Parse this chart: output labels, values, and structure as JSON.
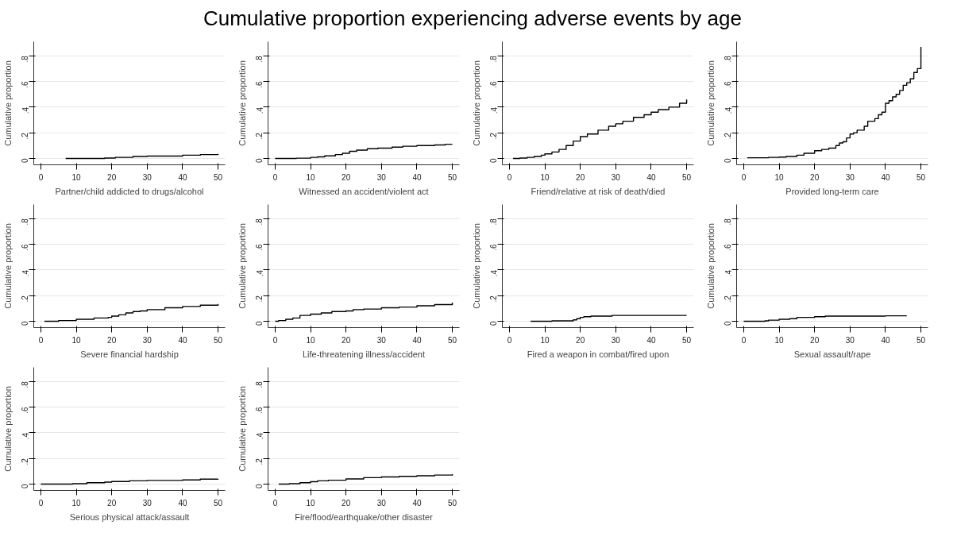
{
  "chart_data": [
    {
      "type": "step",
      "title": "Cumulative proportion experiencing adverse events by age",
      "xlabel": "Partner/child addicted to drugs/alcohol",
      "ylabel": "Cumulative proportion",
      "x": [
        7,
        18,
        21,
        26,
        30,
        40,
        45,
        50
      ],
      "values": [
        0,
        0.003,
        0.008,
        0.015,
        0.018,
        0.025,
        0.03,
        0.035
      ],
      "color": "#000000",
      "xlim": [
        -2,
        52
      ],
      "ylim": [
        -0.05,
        0.91
      ],
      "xticks": [
        0,
        10,
        20,
        30,
        40,
        50
      ],
      "yticks": [
        0,
        {
          "value": 0.2,
          "label": ".2"
        },
        {
          "value": 0.4,
          "label": ".4"
        },
        {
          "value": 0.6,
          "label": ".6"
        },
        {
          "value": 0.8,
          "label": ".8"
        }
      ],
      "grid": "y"
    },
    {
      "type": "step",
      "xlabel": "Witnessed an accident/violent act",
      "ylabel": "Cumulative proportion",
      "x": [
        0,
        6,
        10,
        12,
        14,
        17,
        19,
        21,
        23,
        26,
        29,
        33,
        36,
        40,
        45,
        48,
        50
      ],
      "values": [
        0,
        0.002,
        0.008,
        0.012,
        0.02,
        0.03,
        0.04,
        0.055,
        0.065,
        0.075,
        0.08,
        0.088,
        0.095,
        0.1,
        0.105,
        0.11,
        0.11
      ],
      "color": "#000000",
      "xlim": [
        -2,
        52
      ],
      "ylim": [
        -0.05,
        0.91
      ],
      "xticks": [
        0,
        10,
        20,
        30,
        40,
        50
      ],
      "yticks": [
        0,
        {
          "value": 0.2,
          "label": ".2"
        },
        {
          "value": 0.4,
          "label": ".4"
        },
        {
          "value": 0.6,
          "label": ".6"
        },
        {
          "value": 0.8,
          "label": ".8"
        }
      ],
      "grid": "y"
    },
    {
      "type": "step",
      "xlabel": "Friend/relative at risk of death/died",
      "ylabel": "Cumulative proportion",
      "x": [
        1,
        3,
        5,
        7,
        9,
        10,
        12,
        14,
        16,
        18,
        20,
        22,
        25,
        28,
        30,
        32,
        35,
        38,
        40,
        42,
        45,
        48,
        50
      ],
      "values": [
        0,
        0.003,
        0.008,
        0.015,
        0.025,
        0.035,
        0.05,
        0.07,
        0.1,
        0.135,
        0.17,
        0.19,
        0.22,
        0.25,
        0.27,
        0.29,
        0.32,
        0.34,
        0.36,
        0.38,
        0.4,
        0.43,
        0.46
      ],
      "color": "#000000",
      "xlim": [
        -2,
        52
      ],
      "ylim": [
        -0.05,
        0.91
      ],
      "xticks": [
        0,
        10,
        20,
        30,
        40,
        50
      ],
      "yticks": [
        0,
        {
          "value": 0.2,
          "label": ".2"
        },
        {
          "value": 0.4,
          "label": ".4"
        },
        {
          "value": 0.6,
          "label": ".6"
        },
        {
          "value": 0.8,
          "label": ".8"
        }
      ],
      "grid": "y"
    },
    {
      "type": "step",
      "xlabel": "Provided long-term care",
      "ylabel": "Cumulative proportion",
      "x": [
        1,
        7,
        10,
        12,
        15,
        17,
        20,
        22,
        24,
        26,
        27,
        28,
        29,
        30,
        31,
        32,
        34,
        35,
        37,
        38,
        39,
        40,
        41,
        42,
        43,
        44,
        45,
        46,
        47,
        48,
        49,
        50
      ],
      "values": [
        0.005,
        0.008,
        0.01,
        0.015,
        0.025,
        0.04,
        0.06,
        0.07,
        0.08,
        0.1,
        0.12,
        0.13,
        0.16,
        0.19,
        0.2,
        0.22,
        0.25,
        0.29,
        0.31,
        0.34,
        0.36,
        0.43,
        0.45,
        0.48,
        0.5,
        0.53,
        0.57,
        0.59,
        0.62,
        0.67,
        0.7,
        0.87
      ],
      "color": "#000000",
      "xlim": [
        -2,
        52
      ],
      "ylim": [
        -0.05,
        0.91
      ],
      "xticks": [
        0,
        10,
        20,
        30,
        40,
        50
      ],
      "yticks": [
        0,
        {
          "value": 0.2,
          "label": ".2"
        },
        {
          "value": 0.4,
          "label": ".4"
        },
        {
          "value": 0.6,
          "label": ".6"
        },
        {
          "value": 0.8,
          "label": ".8"
        }
      ],
      "grid": "y"
    },
    {
      "type": "step",
      "xlabel": "Severe financial hardship",
      "ylabel": "Cumulative proportion",
      "x": [
        1,
        5,
        10,
        15,
        19,
        20,
        22,
        24,
        26,
        28,
        30,
        35,
        40,
        45,
        50
      ],
      "values": [
        0,
        0.005,
        0.015,
        0.025,
        0.03,
        0.04,
        0.05,
        0.065,
        0.075,
        0.08,
        0.09,
        0.105,
        0.115,
        0.125,
        0.135
      ],
      "color": "#000000",
      "xlim": [
        -2,
        52
      ],
      "ylim": [
        -0.05,
        0.91
      ],
      "xticks": [
        0,
        10,
        20,
        30,
        40,
        50
      ],
      "yticks": [
        0,
        {
          "value": 0.2,
          "label": ".2"
        },
        {
          "value": 0.4,
          "label": ".4"
        },
        {
          "value": 0.6,
          "label": ".6"
        },
        {
          "value": 0.8,
          "label": ".8"
        }
      ],
      "grid": "y"
    },
    {
      "type": "step",
      "xlabel": "Life-threatening illness/accident",
      "ylabel": "Cumulative proportion",
      "x": [
        0,
        1,
        3,
        5,
        7,
        10,
        13,
        16,
        20,
        22,
        25,
        30,
        35,
        40,
        45,
        50
      ],
      "values": [
        0,
        0.005,
        0.015,
        0.025,
        0.045,
        0.055,
        0.065,
        0.075,
        0.08,
        0.09,
        0.095,
        0.105,
        0.11,
        0.12,
        0.13,
        0.145
      ],
      "color": "#000000",
      "xlim": [
        -2,
        52
      ],
      "ylim": [
        -0.05,
        0.91
      ],
      "xticks": [
        0,
        10,
        20,
        30,
        40,
        50
      ],
      "yticks": [
        0,
        {
          "value": 0.2,
          "label": ".2"
        },
        {
          "value": 0.4,
          "label": ".4"
        },
        {
          "value": 0.6,
          "label": ".6"
        },
        {
          "value": 0.8,
          "label": ".8"
        }
      ],
      "grid": "y"
    },
    {
      "type": "step",
      "xlabel": "Fired a weapon in combat/fired upon",
      "ylabel": "Cumulative proportion",
      "x": [
        6,
        12,
        18,
        19,
        20,
        21,
        23,
        29,
        50
      ],
      "values": [
        0,
        0.003,
        0.01,
        0.02,
        0.03,
        0.035,
        0.04,
        0.045,
        0.045
      ],
      "color": "#000000",
      "xlim": [
        -2,
        52
      ],
      "ylim": [
        -0.05,
        0.91
      ],
      "xticks": [
        0,
        10,
        20,
        30,
        40,
        50
      ],
      "yticks": [
        0,
        {
          "value": 0.2,
          "label": ".2"
        },
        {
          "value": 0.4,
          "label": ".4"
        },
        {
          "value": 0.6,
          "label": ".6"
        },
        {
          "value": 0.8,
          "label": ".8"
        }
      ],
      "grid": "y"
    },
    {
      "type": "step",
      "xlabel": "Sexual assault/rape",
      "ylabel": "Cumulative proportion",
      "x": [
        0,
        6,
        7,
        10,
        13,
        15,
        20,
        23,
        38,
        40,
        46
      ],
      "values": [
        0,
        0.003,
        0.008,
        0.015,
        0.02,
        0.03,
        0.035,
        0.04,
        0.04,
        0.042,
        0.042
      ],
      "color": "#000000",
      "xlim": [
        -2,
        52
      ],
      "ylim": [
        -0.05,
        0.91
      ],
      "xticks": [
        0,
        10,
        20,
        30,
        40,
        50
      ],
      "yticks": [
        0,
        {
          "value": 0.2,
          "label": ".2"
        },
        {
          "value": 0.4,
          "label": ".4"
        },
        {
          "value": 0.6,
          "label": ".6"
        },
        {
          "value": 0.8,
          "label": ".8"
        }
      ],
      "grid": "y"
    },
    {
      "type": "step",
      "xlabel": "Serious physical attack/assault",
      "ylabel": "Cumulative proportion",
      "x": [
        0,
        9,
        13,
        18,
        20,
        25,
        30,
        40,
        45,
        50
      ],
      "values": [
        0,
        0.003,
        0.01,
        0.015,
        0.02,
        0.025,
        0.028,
        0.032,
        0.038,
        0.04
      ],
      "color": "#000000",
      "xlim": [
        -2,
        52
      ],
      "ylim": [
        -0.05,
        0.91
      ],
      "xticks": [
        0,
        10,
        20,
        30,
        40,
        50
      ],
      "yticks": [
        0,
        {
          "value": 0.2,
          "label": ".2"
        },
        {
          "value": 0.4,
          "label": ".4"
        },
        {
          "value": 0.6,
          "label": ".6"
        },
        {
          "value": 0.8,
          "label": ".8"
        }
      ],
      "grid": "y"
    },
    {
      "type": "step",
      "xlabel": "Fire/flood/earthquake/other disaster",
      "ylabel": "Cumulative proportion",
      "x": [
        1,
        4,
        7,
        10,
        12,
        15,
        20,
        25,
        30,
        35,
        40,
        45,
        50
      ],
      "values": [
        0,
        0.003,
        0.01,
        0.018,
        0.025,
        0.03,
        0.04,
        0.05,
        0.055,
        0.06,
        0.065,
        0.07,
        0.077
      ],
      "color": "#000000",
      "xlim": [
        -2,
        52
      ],
      "ylim": [
        -0.05,
        0.91
      ],
      "xticks": [
        0,
        10,
        20,
        30,
        40,
        50
      ],
      "yticks": [
        0,
        {
          "value": 0.2,
          "label": ".2"
        },
        {
          "value": 0.4,
          "label": ".4"
        },
        {
          "value": 0.6,
          "label": ".6"
        },
        {
          "value": 0.8,
          "label": ".8"
        }
      ],
      "grid": "y"
    }
  ]
}
